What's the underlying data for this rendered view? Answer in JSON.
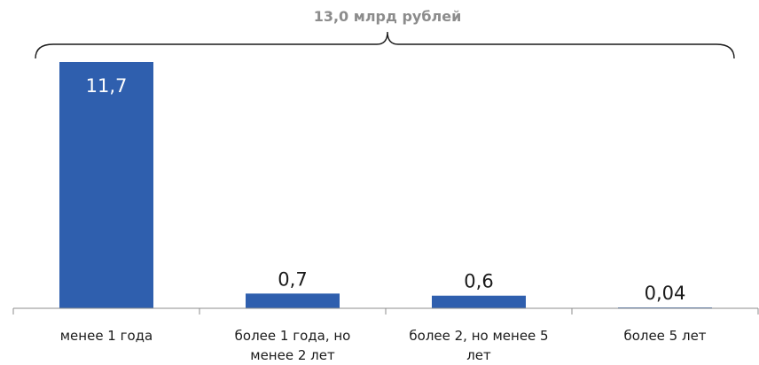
{
  "chart_data": {
    "type": "bar",
    "title": "13,0 млрд рублей",
    "categories": [
      [
        "менее 1 года"
      ],
      [
        "более 1 года, но",
        "менее 2 лет"
      ],
      [
        "более 2, но менее 5",
        "лет"
      ],
      [
        "более 5 лет"
      ]
    ],
    "values": [
      11.7,
      0.7,
      0.6,
      0.04
    ],
    "data_labels": [
      "11,7",
      "0,7",
      "0,6",
      "0,04"
    ],
    "ylim": [
      0,
      11.7
    ],
    "grid": false,
    "legend": "none",
    "bar_color": "#2f5fae",
    "label_inside_color": "#ffffff",
    "label_outside_color": "#1a1a1a",
    "title_color": "#8c8c8c",
    "axis_color": "#8c8c8c"
  }
}
